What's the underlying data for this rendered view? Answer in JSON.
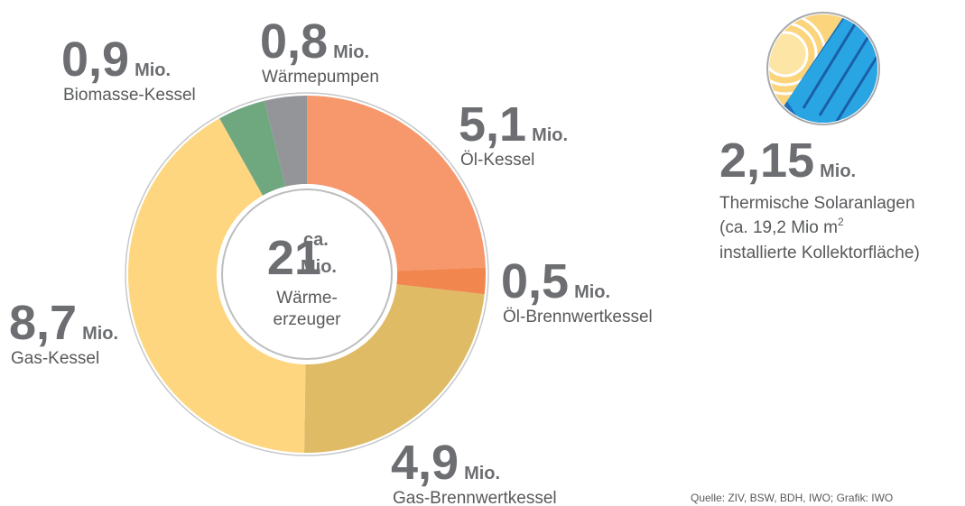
{
  "chart_data": {
    "type": "donut",
    "categories": [
      "Öl-Kessel",
      "Öl-Brennwertkessel",
      "Gas-Brennwertkessel",
      "Gas-Kessel",
      "Biomasse-Kessel",
      "Wärmepumpen"
    ],
    "values": [
      5.1,
      0.5,
      4.9,
      8.7,
      0.9,
      0.8
    ],
    "value_labels": [
      "5,1",
      "0,5",
      "4,9",
      "8,7",
      "0,9",
      "0,8"
    ],
    "colors": [
      "#f6976c",
      "#f2864f",
      "#dfbb66",
      "#fdd67f",
      "#6fa77f",
      "#939598"
    ],
    "unit": "Mio.",
    "total": 21,
    "total_prefix": "ca.",
    "center_label": [
      "Wärme-",
      "erzeuger"
    ],
    "solar": {
      "value": 2.15,
      "value_label": "2,15",
      "label": "Thermische Solaranlagen",
      "note_line1": "(ca. 19,2 Mio m",
      "note_sup": "2",
      "note_line2": "installierte Kollektorfläche)"
    },
    "source": "Quelle: ZIV, BSW, BDH, IWO; Grafik: IWO"
  }
}
